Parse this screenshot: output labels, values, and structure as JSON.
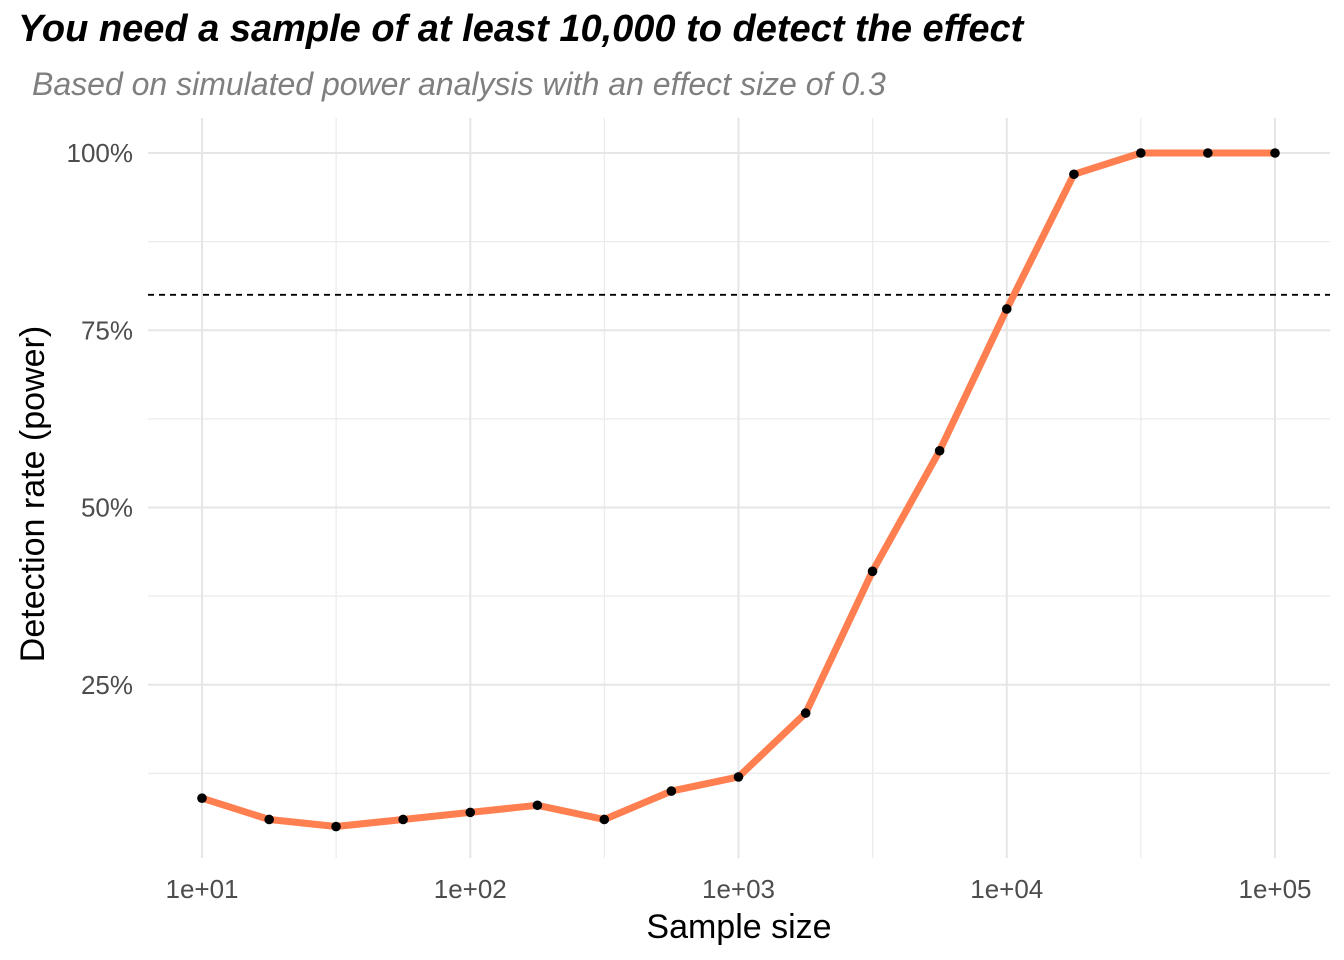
{
  "title": "You need a sample of at least 10,000 to detect the effect",
  "subtitle": "Based on simulated power analysis with an effect size of 0.3",
  "chart_data": {
    "type": "line",
    "title": "You need a sample of at least 10,000 to detect the effect",
    "subtitle": "Based on simulated power analysis with an effect size of 0.3",
    "xlabel": "Sample size",
    "ylabel": "Detection rate (power)",
    "x_scale": "log10",
    "xlim": [
      10,
      100000
    ],
    "ylim": [
      0,
      1
    ],
    "x_ticks": [
      10,
      100,
      1000,
      10000,
      100000
    ],
    "x_tick_labels": [
      "1e+01",
      "1e+02",
      "1e+03",
      "1e+04",
      "1e+05"
    ],
    "y_ticks": [
      0.25,
      0.5,
      0.75,
      1.0
    ],
    "y_tick_labels": [
      "25%",
      "50%",
      "75%",
      "100%"
    ],
    "grid": true,
    "reference_line": {
      "y": 0.8,
      "style": "dashed",
      "color": "#000000"
    },
    "line_color": "#FF7F50",
    "point_color": "#000000",
    "series": [
      {
        "x": [
          10,
          17.8,
          31.6,
          56.2,
          100,
          178,
          316,
          562,
          1000,
          1780,
          3160,
          5620,
          10000,
          17800,
          31600,
          56200,
          100000
        ],
        "values": [
          0.09,
          0.06,
          0.05,
          0.06,
          0.07,
          0.08,
          0.06,
          0.1,
          0.12,
          0.21,
          0.41,
          0.58,
          0.78,
          0.97,
          1.0,
          1.0,
          1.0
        ]
      }
    ]
  }
}
